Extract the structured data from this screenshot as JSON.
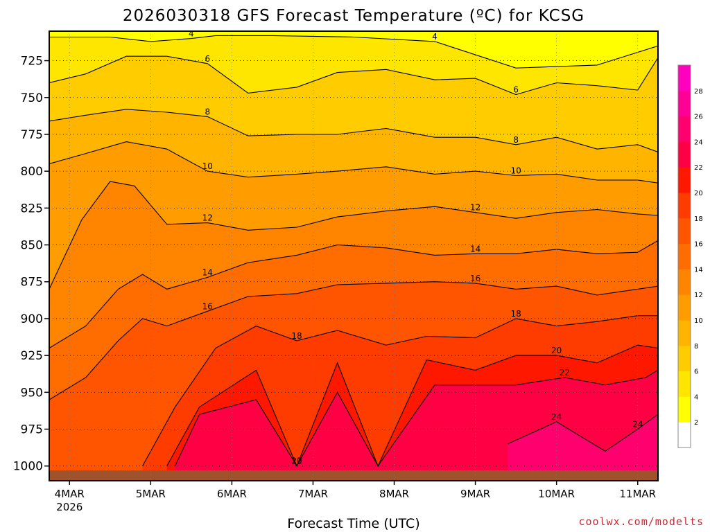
{
  "chart_data": {
    "type": "heatmap",
    "title": "2026030318 GFS Forecast Temperature (ºC) for KCSG",
    "xlabel": "Forecast Time (UTC)",
    "ylabel": "",
    "credit": "coolwx.com/modelts",
    "ylim": [
      1010,
      705
    ],
    "y_ticks": [
      725,
      750,
      775,
      800,
      825,
      850,
      875,
      900,
      925,
      950,
      975,
      1000
    ],
    "xlim_days": [
      -0.25,
      7.25
    ],
    "x_ticks": [
      {
        "label": "4MAR",
        "sub": "2026",
        "day": 0
      },
      {
        "label": "5MAR",
        "sub": "",
        "day": 1
      },
      {
        "label": "6MAR",
        "sub": "",
        "day": 2
      },
      {
        "label": "7MAR",
        "sub": "",
        "day": 3
      },
      {
        "label": "8MAR",
        "sub": "",
        "day": 4
      },
      {
        "label": "9MAR",
        "sub": "",
        "day": 5
      },
      {
        "label": "10MAR",
        "sub": "",
        "day": 6
      },
      {
        "label": "11MAR",
        "sub": "",
        "day": 7
      }
    ],
    "grid": true,
    "colorbar": {
      "ticks": [
        2,
        4,
        6,
        8,
        10,
        12,
        14,
        16,
        18,
        20,
        22,
        24,
        26,
        28
      ],
      "colors": [
        "#ffffff",
        "#ffff00",
        "#ffe600",
        "#ffcc00",
        "#ffb400",
        "#ff9c00",
        "#ff8400",
        "#ff6c00",
        "#ff5400",
        "#ff3c00",
        "#ff1800",
        "#ff0044",
        "#ff006e",
        "#ff0096",
        "#ff00be"
      ]
    },
    "surface_color": "#a0522d",
    "isotherm_levels": [
      2,
      4,
      6,
      8,
      10,
      12,
      14,
      16,
      18,
      20,
      22,
      24,
      26
    ],
    "series": [
      {
        "name": "4 °C isotherm (hPa)",
        "days": [
          -0.25,
          0.5,
          1.0,
          1.5,
          1.8,
          2.5,
          3.5,
          4.5,
          5.5,
          6.5,
          7.25
        ],
        "values": [
          709,
          709,
          712,
          710,
          708,
          708,
          709,
          712,
          730,
          728,
          715
        ]
      },
      {
        "name": "6 °C isotherm (hPa)",
        "days": [
          -0.25,
          0.2,
          0.7,
          1.2,
          1.7,
          2.2,
          2.8,
          3.3,
          3.9,
          4.5,
          5.0,
          5.5,
          6.0,
          6.5,
          7.0,
          7.25
        ],
        "values": [
          740,
          734,
          722,
          722,
          727,
          747,
          743,
          733,
          731,
          738,
          737,
          748,
          740,
          742,
          745,
          723
        ]
      },
      {
        "name": "8 °C isotherm (hPa)",
        "days": [
          -0.25,
          0.2,
          0.7,
          1.2,
          1.7,
          2.2,
          2.8,
          3.3,
          3.9,
          4.5,
          5.0,
          5.5,
          6.0,
          6.5,
          7.0,
          7.25
        ],
        "values": [
          766,
          762,
          758,
          760,
          763,
          776,
          775,
          775,
          771,
          777,
          777,
          782,
          777,
          785,
          782,
          787
        ]
      },
      {
        "name": "10 °C isotherm (hPa)",
        "days": [
          -0.25,
          0.2,
          0.7,
          1.2,
          1.7,
          2.2,
          2.8,
          3.3,
          3.9,
          4.5,
          5.0,
          5.5,
          6.0,
          6.5,
          7.0,
          7.25
        ],
        "values": [
          795,
          788,
          780,
          785,
          800,
          804,
          802,
          800,
          797,
          802,
          800,
          803,
          802,
          806,
          806,
          808
        ]
      },
      {
        "name": "12 °C isotherm (hPa)",
        "days": [
          -0.25,
          0.15,
          0.5,
          0.8,
          1.2,
          1.7,
          2.2,
          2.8,
          3.3,
          3.9,
          4.5,
          5.0,
          5.5,
          6.0,
          6.5,
          7.0,
          7.25
        ],
        "values": [
          880,
          833,
          807,
          810,
          836,
          835,
          840,
          838,
          831,
          827,
          824,
          828,
          832,
          828,
          826,
          829,
          830
        ]
      },
      {
        "name": "14 °C isotherm (hPa)",
        "days": [
          -0.25,
          0.2,
          0.6,
          0.9,
          1.2,
          1.7,
          2.2,
          2.8,
          3.3,
          3.9,
          4.5,
          5.0,
          5.5,
          6.0,
          6.5,
          7.0,
          7.25
        ],
        "values": [
          920,
          905,
          880,
          870,
          880,
          872,
          862,
          857,
          850,
          852,
          857,
          856,
          856,
          853,
          856,
          855,
          847
        ]
      },
      {
        "name": "16 °C isotherm (hPa)",
        "days": [
          -0.25,
          0.2,
          0.6,
          0.9,
          1.2,
          1.7,
          2.2,
          2.8,
          3.3,
          3.9,
          4.5,
          5.0,
          5.5,
          6.0,
          6.5,
          7.0,
          7.25
        ],
        "values": [
          955,
          940,
          915,
          900,
          905,
          895,
          885,
          883,
          877,
          876,
          875,
          876,
          880,
          878,
          884,
          880,
          878
        ]
      },
      {
        "name": "18 °C isotherm (hPa)",
        "days": [
          0.9,
          1.3,
          1.8,
          2.3,
          2.8,
          3.3,
          3.9,
          4.4,
          5.0,
          5.5,
          6.0,
          6.5,
          7.0,
          7.25
        ],
        "values": [
          1000,
          960,
          920,
          905,
          915,
          908,
          918,
          912,
          913,
          900,
          905,
          902,
          898,
          898
        ]
      },
      {
        "name": "20 °C isotherm (hPa)",
        "days": [
          1.2,
          1.6,
          2.3,
          2.8,
          3.3,
          3.8,
          4.4,
          5.0,
          5.5,
          6.0,
          6.5,
          7.0,
          7.25
        ],
        "values": [
          1000,
          960,
          935,
          1000,
          930,
          1000,
          928,
          935,
          925,
          925,
          930,
          918,
          920
        ]
      },
      {
        "name": "22 °C isotherm (hPa)",
        "days": [
          1.3,
          1.6,
          2.3,
          2.8,
          3.3,
          3.8,
          4.5,
          5.0,
          5.5,
          6.1,
          6.6,
          7.1,
          7.25
        ],
        "values": [
          1000,
          965,
          955,
          1000,
          950,
          1000,
          945,
          945,
          945,
          940,
          945,
          940,
          935
        ]
      },
      {
        "name": "24 °C isotherm (hPa)",
        "days": [
          5.4,
          6.0,
          6.6,
          7.0,
          7.25
        ],
        "values": [
          985,
          970,
          990,
          975,
          965
        ]
      }
    ]
  }
}
